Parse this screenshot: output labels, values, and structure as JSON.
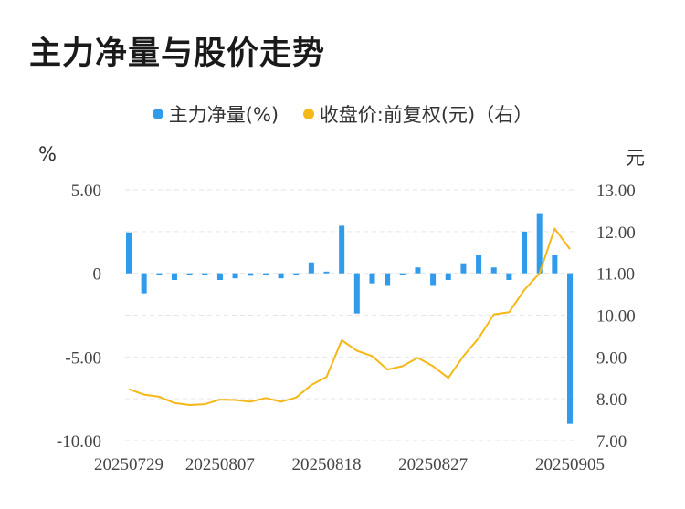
{
  "title": "主力净量与股价走势",
  "legend": {
    "net": "主力净量(%)",
    "price": "收盘价:前复权(元)（右）"
  },
  "colors": {
    "bar": "#2f9bea",
    "line": "#f5b818",
    "grid": "#e6e6e6"
  },
  "chart_data": {
    "type": "bar+line",
    "left_unit": "%",
    "right_unit": "元",
    "y_left_range": [
      -10,
      5
    ],
    "y_right_range": [
      7,
      13
    ],
    "y_left_ticks": [
      "5.00",
      "0",
      "-5.00",
      "-10.00"
    ],
    "y_right_ticks": [
      "13.00",
      "12.00",
      "11.00",
      "10.00",
      "9.00",
      "8.00",
      "7.00"
    ],
    "x_tick_labels": [
      "20250729",
      "20250807",
      "20250818",
      "20250827",
      "20250905"
    ],
    "x_tick_indices": [
      0,
      6,
      13,
      20,
      29
    ],
    "grid": true,
    "legend_position": "top",
    "series": [
      {
        "name": "主力净量(%)",
        "type": "bar",
        "axis": "left",
        "values": [
          2.45,
          -1.2,
          -0.1,
          -0.4,
          -0.05,
          -0.05,
          -0.4,
          -0.3,
          -0.15,
          -0.05,
          -0.3,
          -0.05,
          0.65,
          0.1,
          2.85,
          -2.4,
          -0.6,
          -0.7,
          -0.05,
          0.35,
          -0.7,
          -0.4,
          0.6,
          1.1,
          0.35,
          -0.4,
          2.5,
          3.55,
          1.1,
          -9.0
        ]
      },
      {
        "name": "收盘价:前复权(元)（右）",
        "type": "line",
        "axis": "right",
        "values": [
          8.23,
          8.1,
          8.05,
          7.9,
          7.85,
          7.87,
          7.98,
          7.97,
          7.93,
          8.02,
          7.93,
          8.03,
          8.33,
          8.52,
          9.4,
          9.15,
          9.02,
          8.7,
          8.78,
          8.98,
          8.78,
          8.5,
          9.02,
          9.45,
          10.02,
          10.07,
          10.6,
          11.0,
          12.07,
          11.58
        ]
      }
    ]
  }
}
